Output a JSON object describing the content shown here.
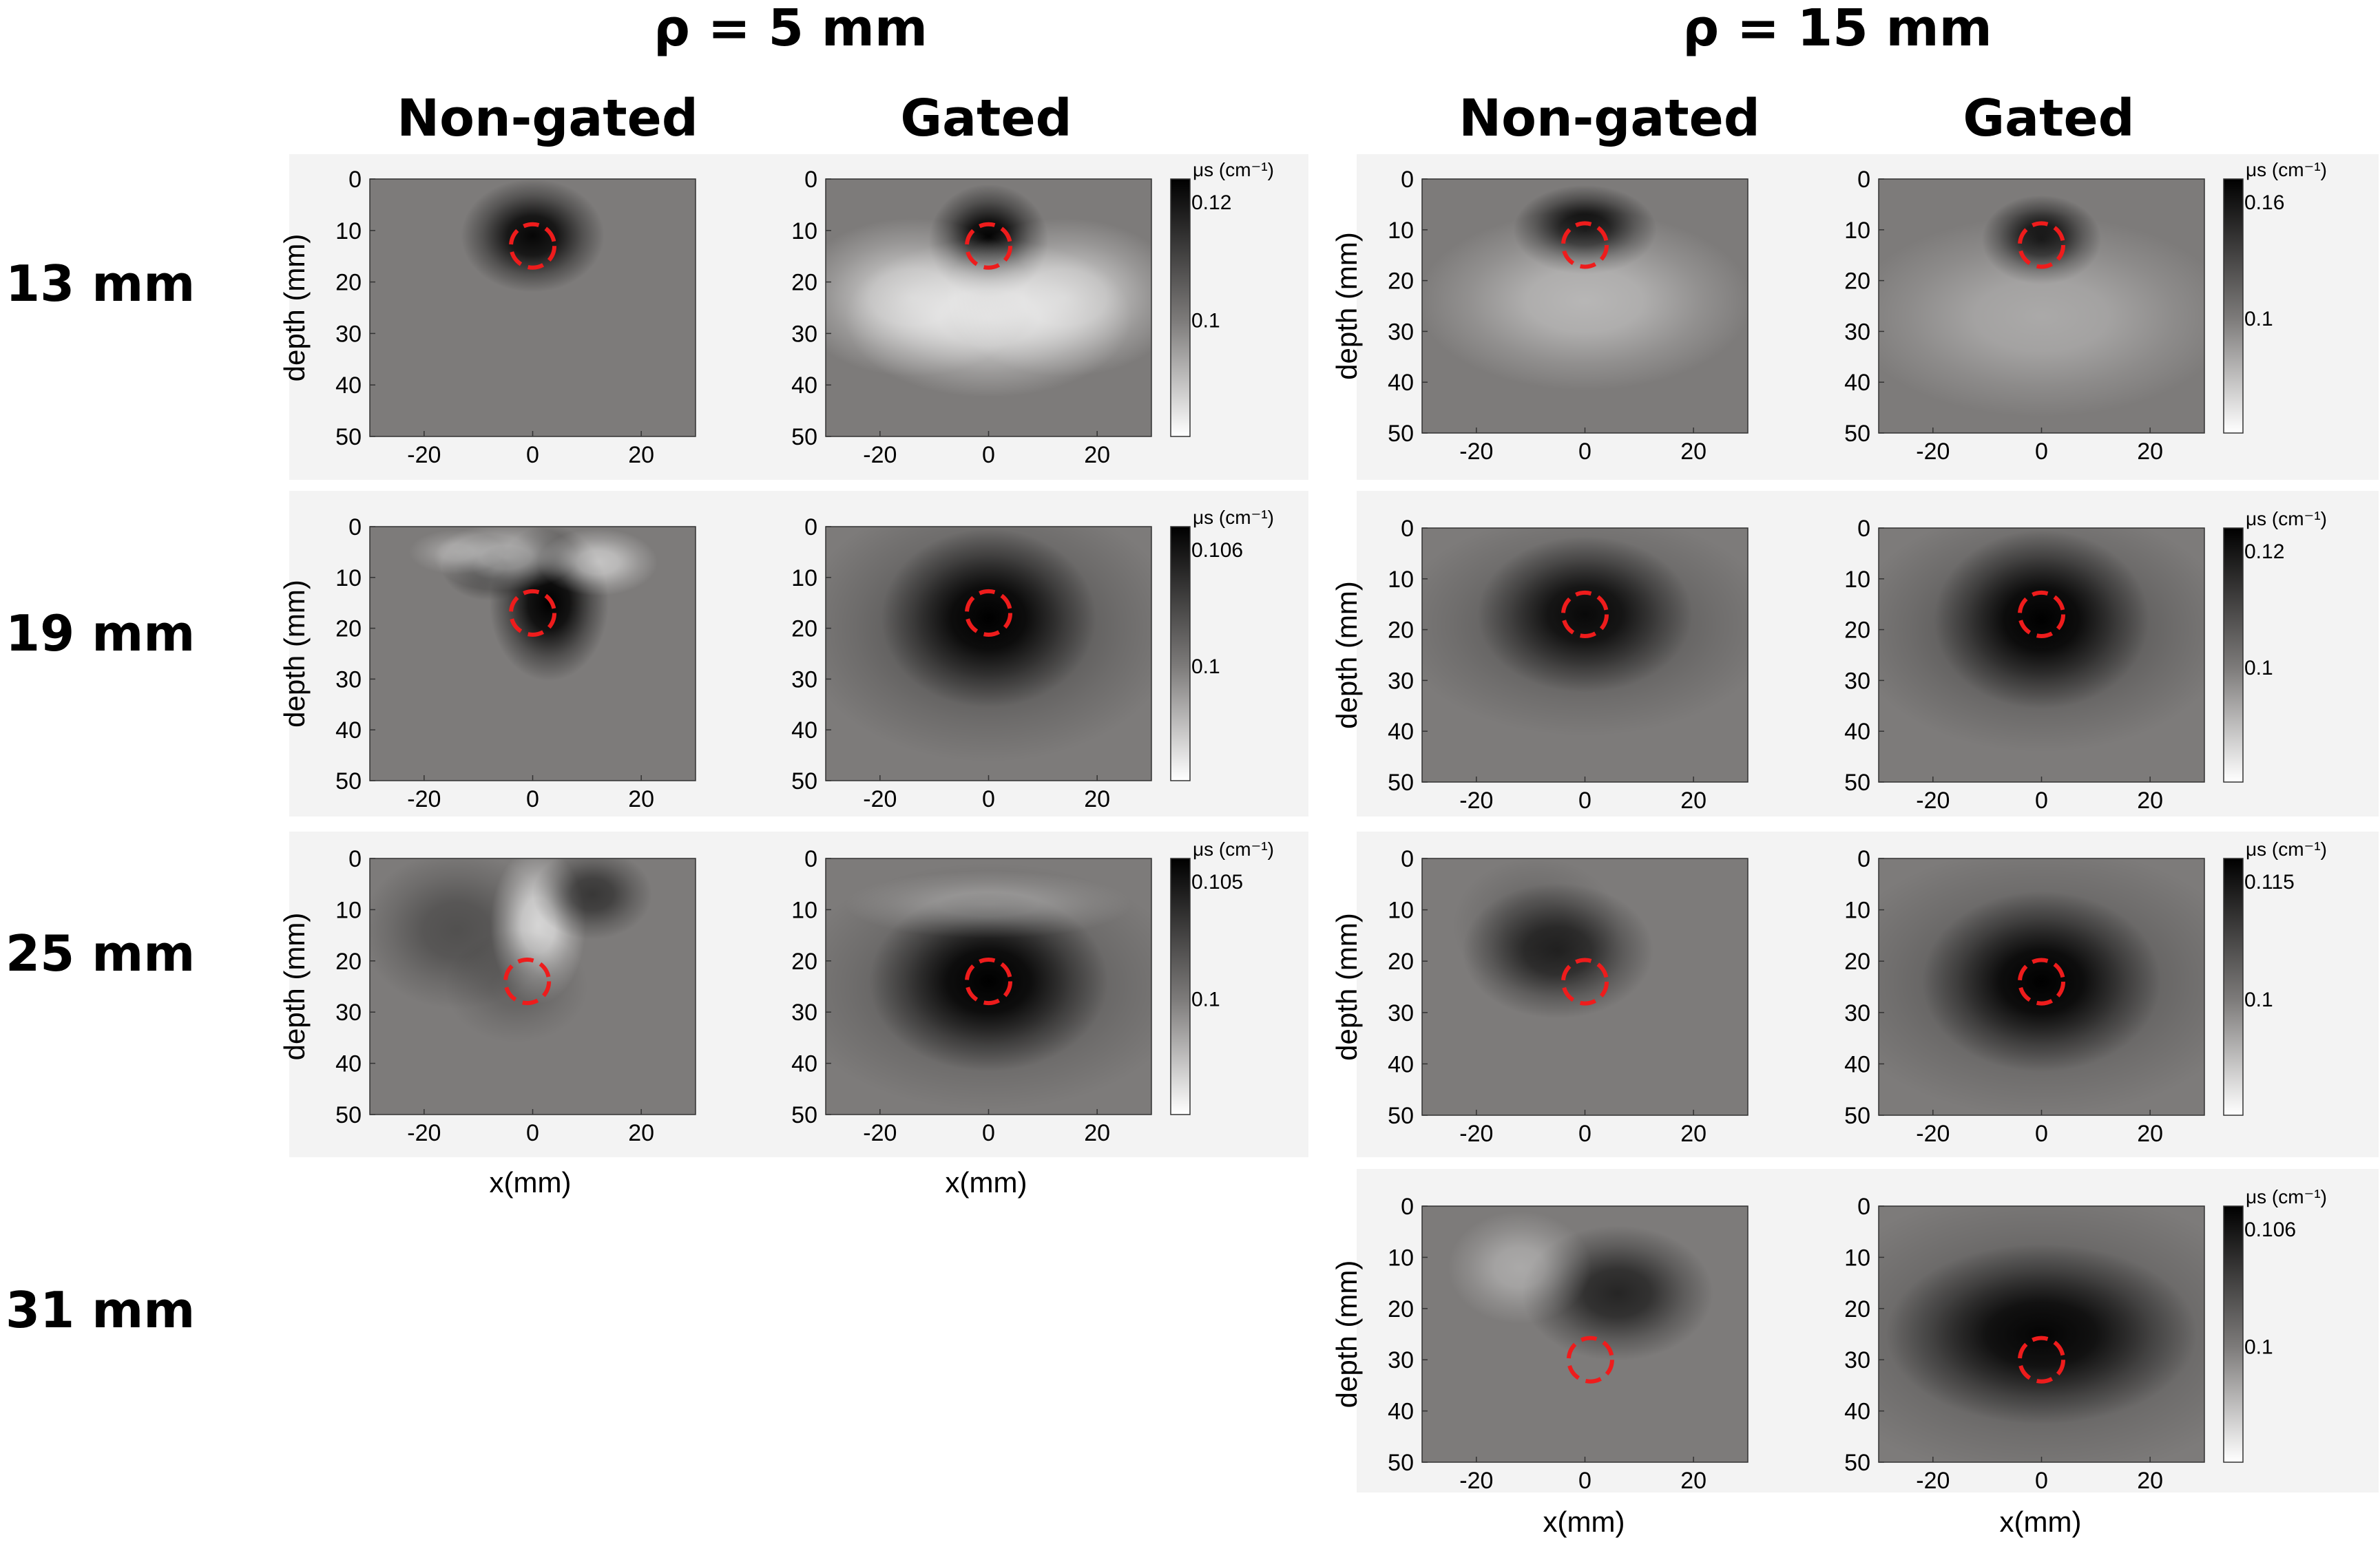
{
  "headers": {
    "rho5": "ρ = 5 mm",
    "rho15": "ρ = 15 mm",
    "nongated": "Non-gated",
    "gated": "Gated"
  },
  "row_labels": [
    "13 mm",
    "19 mm",
    "25 mm",
    "31 mm"
  ],
  "colors": {
    "background_gray": "#7d7b7a",
    "panel_bg": "#f3f3f3",
    "ring": "#ee1c1c"
  },
  "axis": {
    "xlabel": "x(mm)",
    "ylabel": "depth (mm)",
    "colorbar_label": "μs (cm⁻¹)"
  },
  "chart_data": [
    {
      "type": "heatmap",
      "group": "ρ = 5 mm",
      "row": "13 mm",
      "mode": "Non-gated",
      "xlabel": "",
      "ylabel": "depth (mm)",
      "xlim": [
        -30,
        30
      ],
      "ylim": [
        0,
        50
      ],
      "xticks": [
        -20,
        0,
        20
      ],
      "yticks": [
        0,
        10,
        20,
        30,
        40,
        50
      ],
      "inclusion": {
        "x": 0,
        "depth": 13
      },
      "features": [
        {
          "x": 0,
          "depth": 11,
          "sx": 6,
          "sd": 5,
          "a": 0.95
        }
      ]
    },
    {
      "type": "heatmap",
      "group": "ρ = 5 mm",
      "row": "13 mm",
      "mode": "Gated",
      "xlabel": "",
      "ylabel": "",
      "xlim": [
        -30,
        30
      ],
      "ylim": [
        0,
        50
      ],
      "xticks": [
        -20,
        0,
        20
      ],
      "yticks": [
        0,
        10,
        20,
        30,
        40,
        50
      ],
      "inclusion": {
        "x": 0,
        "depth": 13
      },
      "colorbar": {
        "max_label": "0.12",
        "mid_label": "0.1"
      },
      "features": [
        {
          "x": 0,
          "depth": 12,
          "sx": 5,
          "sd": 5,
          "a": 1.0
        },
        {
          "x": -14,
          "depth": 23,
          "sx": 10,
          "sd": 7,
          "a": -0.6
        },
        {
          "x": 0,
          "depth": 27,
          "sx": 12,
          "sd": 7,
          "a": -0.65
        },
        {
          "x": 14,
          "depth": 23,
          "sx": 10,
          "sd": 7,
          "a": -0.6
        }
      ]
    },
    {
      "type": "heatmap",
      "group": "ρ = 15 mm",
      "row": "13 mm",
      "mode": "Non-gated",
      "xlabel": "",
      "ylabel": "depth (mm)",
      "xlim": [
        -30,
        30
      ],
      "ylim": [
        0,
        50
      ],
      "xticks": [
        -20,
        0,
        20
      ],
      "yticks": [
        0,
        10,
        20,
        30,
        40,
        50
      ],
      "inclusion": {
        "x": 0,
        "depth": 13
      },
      "features": [
        {
          "x": 0,
          "depth": 10,
          "sx": 6,
          "sd": 4,
          "a": 1.0
        },
        {
          "x": 0,
          "depth": 24,
          "sx": 14,
          "sd": 8,
          "a": -0.45
        }
      ]
    },
    {
      "type": "heatmap",
      "group": "ρ = 15 mm",
      "row": "13 mm",
      "mode": "Gated",
      "xlabel": "",
      "ylabel": "",
      "xlim": [
        -30,
        30
      ],
      "ylim": [
        0,
        50
      ],
      "xticks": [
        -20,
        0,
        20
      ],
      "yticks": [
        0,
        10,
        20,
        30,
        40,
        50
      ],
      "inclusion": {
        "x": 0,
        "depth": 13
      },
      "colorbar": {
        "max_label": "0.16",
        "mid_label": "0.1"
      },
      "features": [
        {
          "x": 0,
          "depth": 12,
          "sx": 5,
          "sd": 4,
          "a": 1.0
        },
        {
          "x": 0,
          "depth": 27,
          "sx": 16,
          "sd": 9,
          "a": -0.35
        }
      ]
    },
    {
      "type": "heatmap",
      "group": "ρ = 5 mm",
      "row": "19 mm",
      "mode": "Non-gated",
      "xlabel": "",
      "ylabel": "depth (mm)",
      "xlim": [
        -30,
        30
      ],
      "ylim": [
        0,
        50
      ],
      "xticks": [
        -20,
        0,
        20
      ],
      "yticks": [
        0,
        10,
        20,
        30,
        40,
        50
      ],
      "inclusion": {
        "x": 0,
        "depth": 17
      },
      "features": [
        {
          "x": 3,
          "depth": 15,
          "sx": 5,
          "sd": 7,
          "a": 1.0
        },
        {
          "x": -8,
          "depth": 8,
          "sx": 4,
          "sd": 3,
          "a": 0.6
        },
        {
          "x": -5,
          "depth": 6,
          "sx": 6,
          "sd": 3,
          "a": -0.5
        },
        {
          "x": 12,
          "depth": 7,
          "sx": 5,
          "sd": 3,
          "a": -0.55
        },
        {
          "x": -14,
          "depth": 5,
          "sx": 4,
          "sd": 2,
          "a": -0.3
        }
      ]
    },
    {
      "type": "heatmap",
      "group": "ρ = 5 mm",
      "row": "19 mm",
      "mode": "Gated",
      "xlabel": "",
      "ylabel": "",
      "xlim": [
        -30,
        30
      ],
      "ylim": [
        0,
        50
      ],
      "xticks": [
        -20,
        0,
        20
      ],
      "yticks": [
        0,
        10,
        20,
        30,
        40,
        50
      ],
      "inclusion": {
        "x": 0,
        "depth": 17
      },
      "colorbar": {
        "max_label": "0.106",
        "mid_label": "0.1"
      },
      "features": [
        {
          "x": 0,
          "depth": 18,
          "sx": 9,
          "sd": 8,
          "a": 1.0
        },
        {
          "x": 0,
          "depth": 20,
          "sx": 16,
          "sd": 12,
          "a": 0.35
        }
      ]
    },
    {
      "type": "heatmap",
      "group": "ρ = 15 mm",
      "row": "19 mm",
      "mode": "Non-gated",
      "xlabel": "",
      "ylabel": "depth (mm)",
      "xlim": [
        -30,
        30
      ],
      "ylim": [
        0,
        50
      ],
      "xticks": [
        -20,
        0,
        20
      ],
      "yticks": [
        0,
        10,
        20,
        30,
        40,
        50
      ],
      "inclusion": {
        "x": 0,
        "depth": 17
      },
      "features": [
        {
          "x": 0,
          "depth": 17,
          "sx": 9,
          "sd": 7,
          "a": 0.9
        },
        {
          "x": 0,
          "depth": 19,
          "sx": 16,
          "sd": 10,
          "a": 0.3
        }
      ]
    },
    {
      "type": "heatmap",
      "group": "ρ = 15 mm",
      "row": "19 mm",
      "mode": "Gated",
      "xlabel": "",
      "ylabel": "",
      "xlim": [
        -30,
        30
      ],
      "ylim": [
        0,
        50
      ],
      "xticks": [
        -20,
        0,
        20
      ],
      "yticks": [
        0,
        10,
        20,
        30,
        40,
        50
      ],
      "inclusion": {
        "x": 0,
        "depth": 17
      },
      "colorbar": {
        "max_label": "0.12",
        "mid_label": "0.1"
      },
      "features": [
        {
          "x": 0,
          "depth": 18,
          "sx": 9,
          "sd": 8,
          "a": 1.0
        },
        {
          "x": 0,
          "depth": 20,
          "sx": 16,
          "sd": 11,
          "a": 0.35
        }
      ]
    },
    {
      "type": "heatmap",
      "group": "ρ = 5 mm",
      "row": "25 mm",
      "mode": "Non-gated",
      "xlabel": "x(mm)",
      "ylabel": "depth (mm)",
      "xlim": [
        -30,
        30
      ],
      "ylim": [
        0,
        50
      ],
      "xticks": [
        -20,
        0,
        20
      ],
      "yticks": [
        0,
        10,
        20,
        30,
        40,
        50
      ],
      "inclusion": {
        "x": -1,
        "depth": 24
      },
      "features": [
        {
          "x": -14,
          "depth": 14,
          "sx": 8,
          "sd": 7,
          "a": 0.35
        },
        {
          "x": 1,
          "depth": 13,
          "sx": 4,
          "sd": 7,
          "a": -0.7
        },
        {
          "x": 11,
          "depth": 7,
          "sx": 5,
          "sd": 4,
          "a": 0.55
        },
        {
          "x": -3,
          "depth": 25,
          "sx": 6,
          "sd": 5,
          "a": 0.2
        }
      ]
    },
    {
      "type": "heatmap",
      "group": "ρ = 5 mm",
      "row": "25 mm",
      "mode": "Gated",
      "xlabel": "x(mm)",
      "ylabel": "",
      "xlim": [
        -30,
        30
      ],
      "ylim": [
        0,
        50
      ],
      "xticks": [
        -20,
        0,
        20
      ],
      "yticks": [
        0,
        10,
        20,
        30,
        40,
        50
      ],
      "inclusion": {
        "x": 0,
        "depth": 24
      },
      "colorbar": {
        "max_label": "0.105",
        "mid_label": "0.1"
      },
      "features": [
        {
          "x": 0,
          "depth": 24,
          "sx": 10,
          "sd": 8,
          "a": 1.0
        },
        {
          "x": 0,
          "depth": 25,
          "sx": 17,
          "sd": 11,
          "a": 0.3
        },
        {
          "x": 0,
          "depth": 9,
          "sx": 12,
          "sd": 3,
          "a": -0.3
        }
      ]
    },
    {
      "type": "heatmap",
      "group": "ρ = 15 mm",
      "row": "25 mm",
      "mode": "Non-gated",
      "xlabel": "",
      "ylabel": "depth (mm)",
      "xlim": [
        -30,
        30
      ],
      "ylim": [
        0,
        50
      ],
      "xticks": [
        -20,
        0,
        20
      ],
      "yticks": [
        0,
        10,
        20,
        30,
        40,
        50
      ],
      "inclusion": {
        "x": 0,
        "depth": 24
      },
      "features": [
        {
          "x": -5,
          "depth": 18,
          "sx": 8,
          "sd": 6,
          "a": 0.7
        },
        {
          "x": -9,
          "depth": 13,
          "sx": 7,
          "sd": 6,
          "a": 0.2
        }
      ]
    },
    {
      "type": "heatmap",
      "group": "ρ = 15 mm",
      "row": "25 mm",
      "mode": "Gated",
      "xlabel": "",
      "ylabel": "",
      "xlim": [
        -30,
        30
      ],
      "ylim": [
        0,
        50
      ],
      "xticks": [
        -20,
        0,
        20
      ],
      "yticks": [
        0,
        10,
        20,
        30,
        40,
        50
      ],
      "inclusion": {
        "x": 0,
        "depth": 24
      },
      "colorbar": {
        "max_label": "0.115",
        "mid_label": "0.1"
      },
      "features": [
        {
          "x": 0,
          "depth": 24,
          "sx": 10,
          "sd": 8,
          "a": 1.0
        },
        {
          "x": 0,
          "depth": 24,
          "sx": 18,
          "sd": 12,
          "a": 0.3
        }
      ]
    },
    {
      "type": "heatmap",
      "group": "ρ = 15 mm",
      "row": "31 mm",
      "mode": "Non-gated",
      "xlabel": "x(mm)",
      "ylabel": "depth (mm)",
      "xlim": [
        -30,
        30
      ],
      "ylim": [
        0,
        50
      ],
      "xticks": [
        -20,
        0,
        20
      ],
      "yticks": [
        0,
        10,
        20,
        30,
        40,
        50
      ],
      "inclusion": {
        "x": 1,
        "depth": 30
      },
      "features": [
        {
          "x": 6,
          "depth": 17,
          "sx": 8,
          "sd": 6,
          "a": 0.7
        },
        {
          "x": -12,
          "depth": 12,
          "sx": 6,
          "sd": 5,
          "a": -0.35
        }
      ]
    },
    {
      "type": "heatmap",
      "group": "ρ = 15 mm",
      "row": "31 mm",
      "mode": "Gated",
      "xlabel": "x(mm)",
      "ylabel": "",
      "xlim": [
        -30,
        30
      ],
      "ylim": [
        0,
        50
      ],
      "xticks": [
        -20,
        0,
        20
      ],
      "yticks": [
        0,
        10,
        20,
        30,
        40,
        50
      ],
      "inclusion": {
        "x": 0,
        "depth": 30
      },
      "colorbar": {
        "max_label": "0.106",
        "mid_label": "0.1"
      },
      "features": [
        {
          "x": 0,
          "depth": 25,
          "sx": 13,
          "sd": 8,
          "a": 0.95
        },
        {
          "x": 0,
          "depth": 25,
          "sx": 20,
          "sd": 13,
          "a": 0.3
        }
      ]
    }
  ]
}
